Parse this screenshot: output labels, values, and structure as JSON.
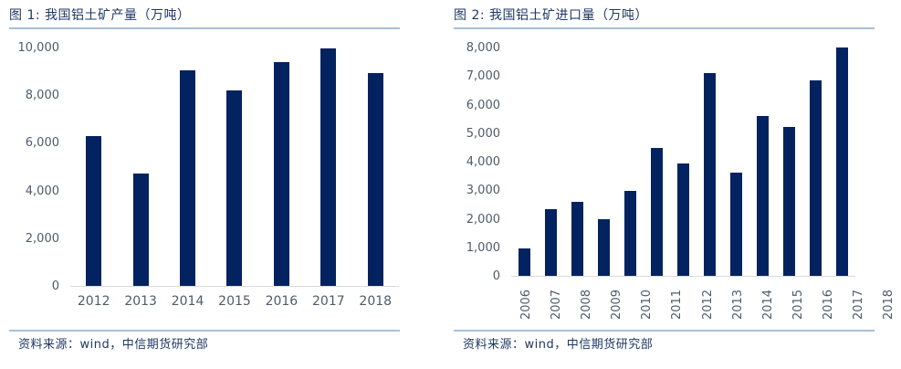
{
  "figures": [
    {
      "title": "图 1: 我国铝土矿产量（万吨）",
      "source": "资料来源：wind，中信期货研究部"
    },
    {
      "title": "图 2: 我国铝土矿进口量（万吨）",
      "source": "资料来源：wind，中信期货研究部"
    }
  ],
  "colors": {
    "bar": "#032260",
    "title_text": "#1f3864",
    "rule": "#a7c0d9",
    "tick_label": "#4f5b69",
    "axis_line": "#d9d9d9",
    "source_text": "#1f3864",
    "background": "#ffffff"
  },
  "chart_data": [
    {
      "type": "bar",
      "title": "图 1: 我国铝土矿产量（万吨）",
      "unit": "万吨",
      "categories": [
        "2012",
        "2013",
        "2014",
        "2015",
        "2016",
        "2017",
        "2018"
      ],
      "values": [
        6300,
        4710,
        9050,
        8190,
        9370,
        9950,
        8930
      ],
      "xlabel": "",
      "ylabel": "",
      "ylim": [
        0,
        10000
      ],
      "ytick_step": 2000,
      "grid": false,
      "legend": false,
      "x_label_rotation": 0
    },
    {
      "type": "bar",
      "title": "图 2: 我国铝土矿进口量（万吨）",
      "unit": "万吨",
      "categories": [
        "2006",
        "2007",
        "2008",
        "2009",
        "2010",
        "2011",
        "2012",
        "2013",
        "2014",
        "2015",
        "2016",
        "2017",
        "2018"
      ],
      "values": [
        950,
        2320,
        2590,
        1980,
        2990,
        4490,
        3940,
        7090,
        3610,
        5590,
        5200,
        6860,
        7990
      ],
      "xlabel": "",
      "ylabel": "",
      "ylim": [
        0,
        8000
      ],
      "ytick_step": 1000,
      "grid": false,
      "legend": false,
      "x_label_rotation": -90
    }
  ]
}
